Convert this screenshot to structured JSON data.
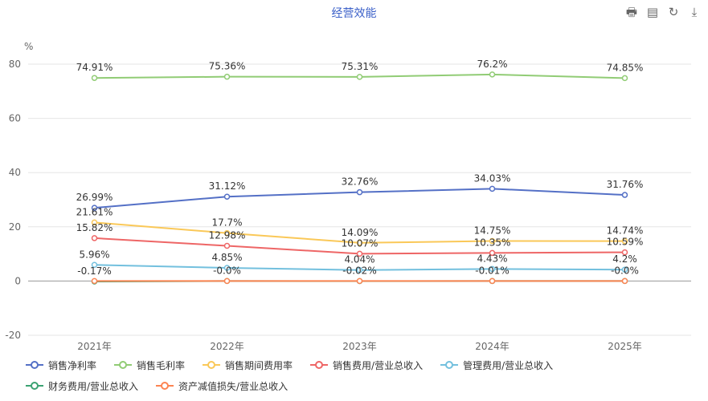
{
  "title": "经营效能",
  "toolbar": [
    {
      "name": "print-icon",
      "glyph": "🖶"
    },
    {
      "name": "data-view-icon",
      "glyph": "▤"
    },
    {
      "name": "refresh-icon",
      "glyph": "↻"
    },
    {
      "name": "download-icon",
      "glyph": "⤓"
    }
  ],
  "chart_data": {
    "type": "line",
    "categories": [
      "2021年",
      "2022年",
      "2023年",
      "2024年",
      "2025年"
    ],
    "ylabel": "%",
    "ylim": [
      -20,
      80
    ],
    "yticks": [
      -20,
      0,
      20,
      40,
      60,
      80
    ],
    "grid": true,
    "legend_position": "bottom",
    "series": [
      {
        "name": "销售净利率",
        "color": "#5470c6",
        "values": [
          26.99,
          31.12,
          32.76,
          34.03,
          31.76
        ],
        "labels": [
          "26.99%",
          "31.12%",
          "32.76%",
          "34.03%",
          "31.76%"
        ]
      },
      {
        "name": "销售毛利率",
        "color": "#91cc75",
        "values": [
          74.91,
          75.36,
          75.31,
          76.2,
          74.85
        ],
        "labels": [
          "74.91%",
          "75.36%",
          "75.31%",
          "76.2%",
          "74.85%"
        ]
      },
      {
        "name": "销售期间费用率",
        "color": "#fac858",
        "values": [
          21.61,
          17.7,
          14.09,
          14.75,
          14.74
        ],
        "labels": [
          "21.61%",
          "17.7%",
          "14.09%",
          "14.75%",
          "14.74%"
        ]
      },
      {
        "name": "销售费用/营业总收入",
        "color": "#ee6666",
        "values": [
          15.82,
          12.98,
          10.07,
          10.35,
          10.59
        ],
        "labels": [
          "15.82%",
          "12.98%",
          "10.07%",
          "10.35%",
          "10.59%"
        ]
      },
      {
        "name": "管理费用/营业总收入",
        "color": "#73c0de",
        "values": [
          5.96,
          4.85,
          4.04,
          4.43,
          4.2
        ],
        "labels": [
          "5.96%",
          "4.85%",
          "4.04%",
          "4.43%",
          "4.2%"
        ]
      },
      {
        "name": "财务费用/营业总收入",
        "color": "#3ba272",
        "values": [
          -0.17,
          -0.0,
          -0.02,
          -0.01,
          -0.0
        ],
        "labels": [
          "-0.17%",
          "-0.0%",
          "-0.02%",
          "-0.01%",
          "-0.0%"
        ]
      },
      {
        "name": "资产减值损失/营业总收入",
        "color": "#fc8452",
        "values": [
          0,
          0,
          0,
          0,
          0
        ],
        "labels": [
          "",
          "",
          "",
          "",
          ""
        ]
      }
    ]
  }
}
